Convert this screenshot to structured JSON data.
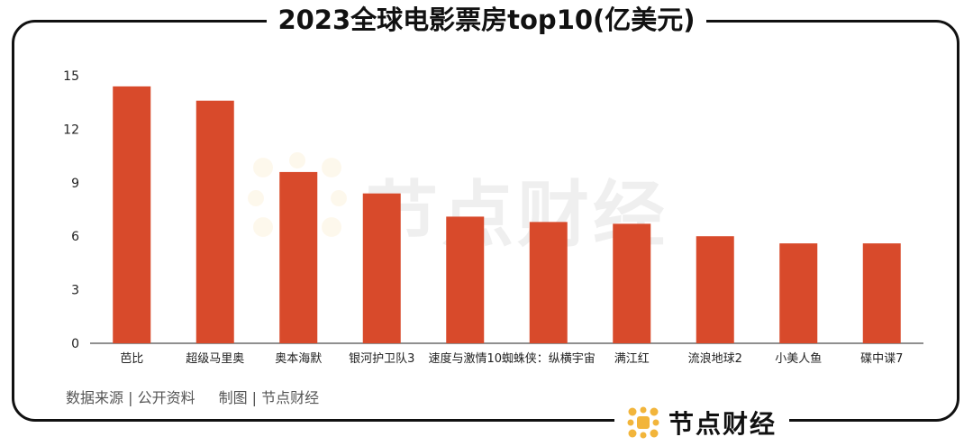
{
  "title": "2023全球电影票房top10(亿美元)",
  "footer": {
    "source": "数据来源 | 公开资料",
    "made_by": "制图 | 节点财经"
  },
  "brand": {
    "name": "节点财经",
    "watermark_text": "节点财经",
    "logo_color": "#f2b53b"
  },
  "chart_data": {
    "type": "bar",
    "title": "2023全球电影票房top10(亿美元)",
    "categories": [
      "芭比",
      "超级马里奥",
      "奥本海默",
      "银河护卫队3",
      "速度与激情10",
      "蜘蛛侠：纵横宇宙",
      "满江红",
      "流浪地球2",
      "小美人鱼",
      "碟中谍7"
    ],
    "values": [
      14.4,
      13.6,
      9.6,
      8.4,
      7.1,
      6.8,
      6.7,
      6.0,
      5.6,
      5.6
    ],
    "ylim": [
      0,
      15
    ],
    "yticks": [
      0,
      3,
      6,
      9,
      12,
      15
    ],
    "grid": false,
    "bar_color": "#d84a2b",
    "xlabel": "",
    "ylabel": ""
  }
}
